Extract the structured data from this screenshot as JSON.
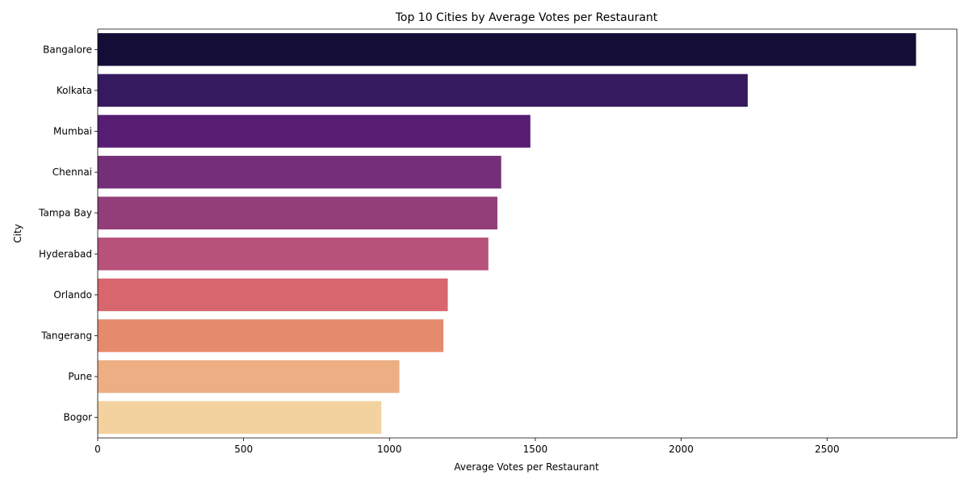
{
  "chart_data": {
    "type": "bar",
    "orientation": "horizontal",
    "title": "Top 10 Cities by Average Votes per Restaurant",
    "xlabel": "Average Votes per Restaurant",
    "ylabel": "City",
    "xlim": [
      0,
      2945
    ],
    "xticks": [
      0,
      500,
      1000,
      1500,
      2000,
      2500
    ],
    "grid": false,
    "categories": [
      "Bangalore",
      "Kolkata",
      "Mumbai",
      "Chennai",
      "Tampa Bay",
      "Hyderabad",
      "Orlando",
      "Tangerang",
      "Pune",
      "Bogor"
    ],
    "values": [
      2805,
      2228,
      1483,
      1383,
      1370,
      1339,
      1200,
      1185,
      1034,
      972
    ],
    "colors": [
      "#140e36",
      "#351a5f",
      "#561d73",
      "#752f79",
      "#933e79",
      "#b7527a",
      "#d7666f",
      "#e68a6e",
      "#edae84",
      "#f3d2a0"
    ]
  }
}
